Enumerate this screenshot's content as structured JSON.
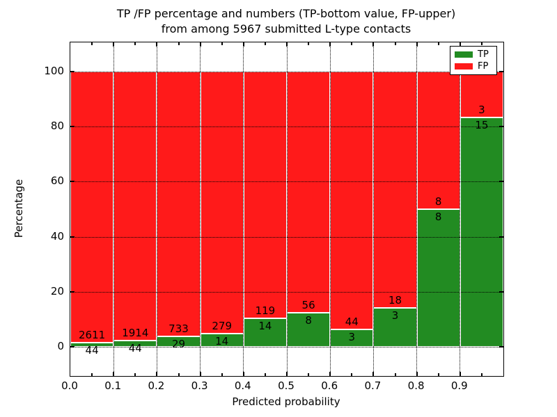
{
  "chart_data": {
    "type": "bar",
    "stacked": true,
    "normalized_to_percent": true,
    "title_line1": "TP /FP percentage and numbers (TP-bottom value, FP-upper)",
    "title_line2": "from among 5967 submitted L-type contacts",
    "xlabel": "Predicted probability",
    "ylabel": "Percentage",
    "categories": [
      "0.0-0.1",
      "0.1-0.2",
      "0.2-0.3",
      "0.3-0.4",
      "0.4-0.5",
      "0.5-0.6",
      "0.6-0.7",
      "0.7-0.8",
      "0.8-0.9",
      "0.9-1.0"
    ],
    "bin_edges": [
      0.0,
      0.1,
      0.2,
      0.3,
      0.4,
      0.5,
      0.6,
      0.7,
      0.8,
      0.9,
      1.0
    ],
    "series": [
      {
        "name": "TP",
        "color": "#228b22",
        "values": [
          44,
          44,
          29,
          14,
          14,
          8,
          3,
          3,
          8,
          15
        ]
      },
      {
        "name": "FP",
        "color": "#ff1a1a",
        "values": [
          2611,
          1914,
          733,
          279,
          119,
          56,
          44,
          18,
          8,
          3
        ]
      }
    ],
    "tp_percent_depicted": [
      1.66,
      2.25,
      3.81,
      4.78,
      10.53,
      12.5,
      6.38,
      14.29,
      50.0,
      83.33
    ],
    "total_contacts": 5967,
    "x_tick_labels": [
      "0.0",
      "0.1",
      "0.2",
      "0.3",
      "0.4",
      "0.5",
      "0.6",
      "0.7",
      "0.8",
      "0.9"
    ],
    "y_ticks": [
      0,
      20,
      40,
      60,
      80,
      100
    ],
    "y_tick_labels": [
      "0",
      "20",
      "40",
      "60",
      "80",
      "100"
    ],
    "ylim": [
      -10.5,
      110.5
    ],
    "xlim": [
      0.0,
      1.0
    ],
    "grid": true,
    "legend_position": "upper right",
    "legend": [
      {
        "label": "TP",
        "color": "#228b22"
      },
      {
        "label": "FP",
        "color": "#ff1a1a"
      }
    ],
    "colors": {
      "tp": "#228b22",
      "fp": "#ff1a1a",
      "grid": "#000000",
      "background": "#ffffff",
      "bar_edge": "#ffffff"
    }
  }
}
